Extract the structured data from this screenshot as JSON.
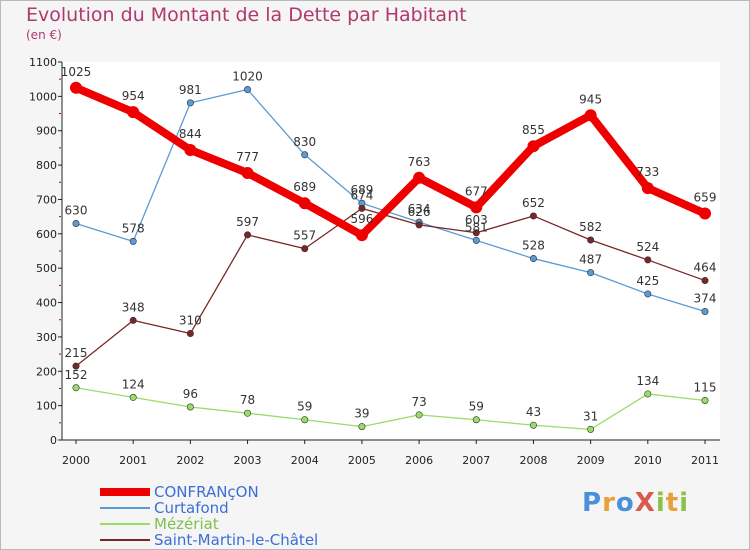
{
  "title": "Evolution du Montant de la Dette par Habitant",
  "subtitle": "(en €)",
  "logo": {
    "text": "ProXiti",
    "letters": [
      {
        "ch": "P",
        "color": "#4a90d9"
      },
      {
        "ch": "r",
        "color": "#e8a03a"
      },
      {
        "ch": "o",
        "color": "#4a90d9"
      },
      {
        "ch": "X",
        "color": "#d85a4a"
      },
      {
        "ch": "i",
        "color": "#8bc34a"
      },
      {
        "ch": "t",
        "color": "#e8a03a"
      },
      {
        "ch": "i",
        "color": "#8bc34a"
      }
    ]
  },
  "chart_data": {
    "type": "line",
    "x": [
      "2000",
      "2001",
      "2002",
      "2003",
      "2004",
      "2005",
      "2006",
      "2007",
      "2008",
      "2009",
      "2010",
      "2011"
    ],
    "ylim": [
      0,
      1100
    ],
    "yticks": [
      0,
      100,
      200,
      300,
      400,
      500,
      600,
      700,
      800,
      900,
      1000,
      1100
    ],
    "grid": false,
    "legend_position": "bottom-left",
    "series": [
      {
        "name": "CONFRANçON",
        "color": "#ee0000",
        "values": [
          1025,
          954,
          844,
          777,
          689,
          596,
          763,
          677,
          855,
          945,
          733,
          659
        ],
        "style": "thick"
      },
      {
        "name": "Curtafond",
        "color": "#5b9bd5",
        "values": [
          630,
          578,
          981,
          1020,
          830,
          689,
          634,
          581,
          528,
          487,
          425,
          374
        ],
        "style": "thin"
      },
      {
        "name": "Mézériat",
        "color": "#99dd66",
        "values": [
          152,
          124,
          96,
          78,
          59,
          39,
          73,
          59,
          43,
          31,
          134,
          115
        ],
        "style": "thin"
      },
      {
        "name": "Saint-Martin-le-Châtel",
        "color": "#7b2626",
        "values": [
          215,
          348,
          310,
          597,
          557,
          674,
          626,
          603,
          652,
          582,
          524,
          464
        ],
        "style": "thin"
      }
    ]
  }
}
